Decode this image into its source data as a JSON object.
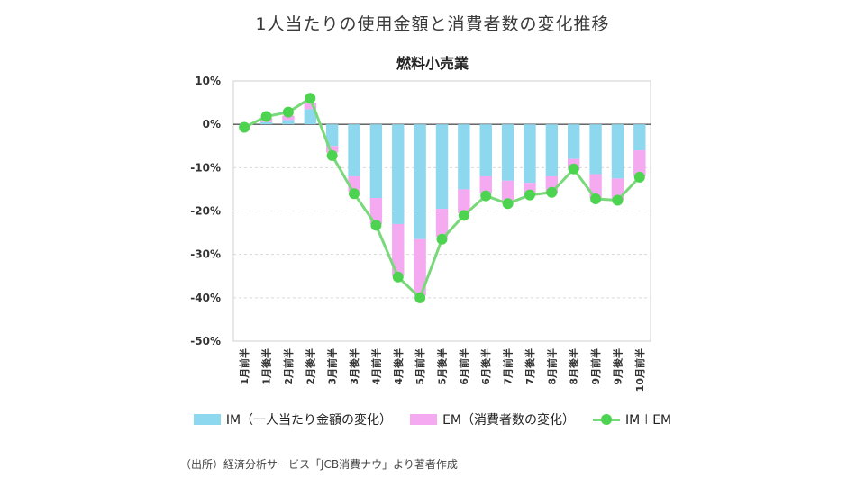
{
  "page_title": "1人当たりの使用金額と消費者数の変化推移",
  "source_note": "（出所）経済分析サービス「JCB消費ナウ」より著者作成",
  "colors": {
    "im": "#8dd8ee",
    "em": "#f4a9f1",
    "line": "#79d97a",
    "marker": "#4cd34f",
    "grid": "#d9d9d9"
  },
  "chart_data": {
    "type": "bar",
    "title": "燃料小売業",
    "categories": [
      "1月前半",
      "1月後半",
      "2月前半",
      "2月後半",
      "3月前半",
      "3月後半",
      "4月前半",
      "4月後半",
      "5月前半",
      "5月後半",
      "6月前半",
      "6月後半",
      "7月前半",
      "7月後半",
      "8月前半",
      "8月後半",
      "9月前半",
      "9月後半",
      "10月前半"
    ],
    "y_ticks": [
      "10%",
      "0%",
      "-10%",
      "-20%",
      "-30%",
      "-40%",
      "-50%"
    ],
    "ylim": [
      -50,
      10
    ],
    "stacked": true,
    "series": [
      {
        "name": "IM（一人当たり金額の変化）",
        "kind": "bar",
        "color_key": "im",
        "values": [
          0.0,
          0.5,
          1.0,
          3.5,
          -5.0,
          -12.0,
          -17.0,
          -23.0,
          -26.5,
          -19.5,
          -15.0,
          -12.0,
          -13.0,
          -13.5,
          -12.0,
          -8.0,
          -11.5,
          -12.5,
          -6.0
        ]
      },
      {
        "name": "EM（消費者数の変化）",
        "kind": "bar",
        "color_key": "em",
        "values": [
          0.0,
          1.0,
          1.0,
          1.5,
          -1.5,
          -3.5,
          -6.0,
          -12.0,
          -13.0,
          -6.5,
          -5.5,
          -4.0,
          -4.5,
          -3.0,
          -4.0,
          -2.5,
          -5.5,
          -5.0,
          -6.0
        ]
      },
      {
        "name": "IM＋EM",
        "kind": "line",
        "color_key": "line",
        "values": [
          -0.7,
          1.8,
          2.8,
          6.0,
          -7.2,
          -16.0,
          -23.3,
          -35.2,
          -40.0,
          -26.5,
          -21.0,
          -16.5,
          -18.3,
          -16.3,
          -15.7,
          -10.3,
          -17.2,
          -17.5,
          -12.2
        ]
      }
    ],
    "grid": true
  }
}
